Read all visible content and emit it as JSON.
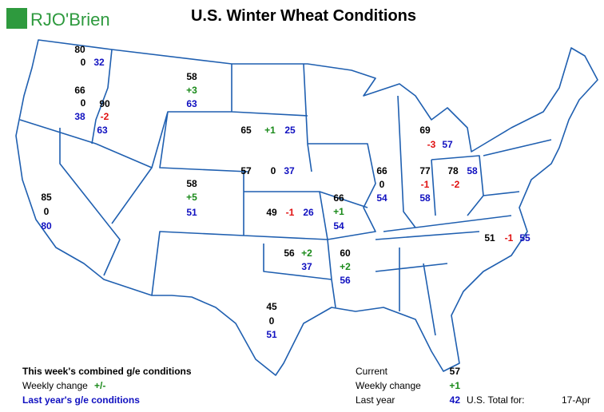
{
  "header": {
    "logo": "RJO'Brien",
    "title": "U.S. Winter Wheat Conditions"
  },
  "states": [
    {
      "current": "80",
      "change": "0",
      "last_year": "32"
    },
    {
      "current": "66",
      "change": "0",
      "last_year": "38"
    },
    {
      "current": "90",
      "change": "-2",
      "last_year": "63"
    },
    {
      "current": "58",
      "change": "+3",
      "last_year": "63"
    },
    {
      "current": "65",
      "change": "+1",
      "last_year": "25"
    },
    {
      "current": "57",
      "change": "0",
      "last_year": "37"
    },
    {
      "current": "58",
      "change": "+5",
      "last_year": "51"
    },
    {
      "current": "85",
      "change": "0",
      "last_year": "80"
    },
    {
      "current": "49",
      "change": "-1",
      "last_year": "26"
    },
    {
      "current": "66",
      "change": "+1",
      "last_year": "54"
    },
    {
      "current": "66",
      "change": "0",
      "last_year": "54"
    },
    {
      "current": "77",
      "change": "-1",
      "last_year": "58"
    },
    {
      "current": "78",
      "change": "-2",
      "last_year": "58"
    },
    {
      "current": "69",
      "change": "-3",
      "last_year": "57"
    },
    {
      "current": "56",
      "change": "+2",
      "last_year": "37"
    },
    {
      "current": "60",
      "change": "+2",
      "last_year": "56"
    },
    {
      "current": "45",
      "change": "0",
      "last_year": "51"
    },
    {
      "current": "51",
      "change": "-1",
      "last_year": "55"
    }
  ],
  "legend": {
    "current": "This week's combined g/e conditions",
    "change": "Weekly change",
    "change_sign": "+/-",
    "last_year": "Last year's g/e conditions"
  },
  "summary": {
    "rows": [
      [
        "Current",
        "57"
      ],
      [
        "Weekly change",
        "+1"
      ],
      [
        "Last year",
        "42"
      ]
    ],
    "total_label": "U.S. Total for:",
    "date": "17-Apr"
  }
}
